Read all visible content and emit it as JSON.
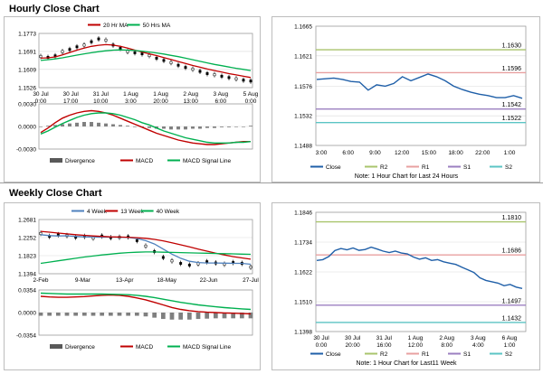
{
  "sections": {
    "hourly_title": "Hourly Close Chart",
    "weekly_title": "Weekly Close Chart"
  },
  "colors": {
    "price": "#000000",
    "ma_red": "#c00000",
    "ma_green": "#00b050",
    "ma_blue": "#4f81bd",
    "close_line": "#1f5fa8",
    "r2": "#a9c46c",
    "r1": "#e8a0a0",
    "s1": "#9b7fc0",
    "s2": "#5bc4c4",
    "grid": "#d9d9d9"
  },
  "chart_data": [
    {
      "id": "hourly_price",
      "type": "line",
      "legend": [
        "20 Hr MA",
        "50 Hrs MA"
      ],
      "y_ticks": [
        "1.1773",
        "1.1691",
        "1.1609",
        "1.1526"
      ],
      "ylim": [
        1.1526,
        1.1773
      ],
      "x_ticks": [
        [
          "30 Jul",
          "0:00"
        ],
        [
          "30 Jul",
          "17:00"
        ],
        [
          "31 Jul",
          "10:00"
        ],
        [
          "1 Aug",
          "3:00"
        ],
        [
          "1 Aug",
          "20:00"
        ],
        [
          "2 Aug",
          "13:00"
        ],
        [
          "3 Aug",
          "6:00"
        ],
        [
          "5 Aug",
          "0:00"
        ]
      ],
      "price": [
        1.1668,
        1.1664,
        1.1671,
        1.169,
        1.17,
        1.1712,
        1.172,
        1.1735,
        1.1748,
        1.1742,
        1.172,
        1.1705,
        1.169,
        1.1685,
        1.168,
        1.1672,
        1.166,
        1.165,
        1.164,
        1.1628,
        1.1618,
        1.161,
        1.16,
        1.159,
        1.1585,
        1.1578,
        1.1572,
        1.1566,
        1.156,
        1.1556
      ],
      "series": [
        {
          "name": "20 Hr MA",
          "values": [
            1.166,
            1.1662,
            1.1666,
            1.1675,
            1.1686,
            1.1697,
            1.1706,
            1.1714,
            1.1719,
            1.1722,
            1.172,
            1.1714,
            1.1706,
            1.1697,
            1.1688,
            1.168,
            1.1672,
            1.1663,
            1.1654,
            1.1645,
            1.1636,
            1.1627,
            1.1619,
            1.1611,
            1.1604,
            1.1597,
            1.159,
            1.1584,
            1.1578,
            1.1572
          ]
        },
        {
          "name": "50 Hrs MA",
          "values": [
            1.165,
            1.1653,
            1.1657,
            1.1662,
            1.1668,
            1.1674,
            1.168,
            1.1685,
            1.169,
            1.1694,
            1.1697,
            1.1698,
            1.1697,
            1.1695,
            1.1692,
            1.1688,
            1.1684,
            1.1679,
            1.1673,
            1.1667,
            1.166,
            1.1653,
            1.1646,
            1.1639,
            1.1632,
            1.1626,
            1.162,
            1.1614,
            1.1609,
            1.1604
          ]
        }
      ]
    },
    {
      "id": "hourly_macd",
      "type": "line",
      "y_ticks": [
        "0.0030",
        "0.0000",
        "-0.0030"
      ],
      "ylim": [
        -0.003,
        0.003
      ],
      "legend": [
        "Divergence",
        "MACD",
        "MACD Signal Line"
      ],
      "divergence": [
        0.0,
        0.0001,
        0.0002,
        0.0003,
        0.0004,
        0.0005,
        0.0006,
        0.0006,
        0.0005,
        0.0004,
        0.0003,
        0.0002,
        0.0001,
        0.0,
        -0.0001,
        -0.0002,
        -0.0003,
        -0.0003,
        -0.0004,
        -0.0004,
        -0.0004,
        -0.0003,
        -0.0003,
        -0.0002,
        -0.0002,
        -0.0001,
        -0.0001,
        0.0,
        0.0,
        0.0001
      ],
      "series": [
        {
          "name": "MACD",
          "values": [
            -0.0008,
            -0.0002,
            0.0005,
            0.0011,
            0.0015,
            0.0018,
            0.002,
            0.0021,
            0.002,
            0.0018,
            0.0015,
            0.0011,
            0.0007,
            0.0003,
            -0.0001,
            -0.0005,
            -0.0009,
            -0.0012,
            -0.0015,
            -0.0018,
            -0.002,
            -0.0022,
            -0.0023,
            -0.0024,
            -0.0024,
            -0.0023,
            -0.0022,
            -0.0021,
            -0.002,
            -0.002
          ]
        },
        {
          "name": "MACD Signal Line",
          "values": [
            -0.001,
            -0.0006,
            -0.0001,
            0.0004,
            0.0008,
            0.0012,
            0.0015,
            0.0017,
            0.0018,
            0.0018,
            0.0017,
            0.0015,
            0.0012,
            0.0009,
            0.0005,
            0.0002,
            -0.0002,
            -0.0006,
            -0.0009,
            -0.0012,
            -0.0015,
            -0.0017,
            -0.0019,
            -0.0021,
            -0.0022,
            -0.0022,
            -0.0022,
            -0.0021,
            -0.0021,
            -0.002
          ]
        }
      ]
    },
    {
      "id": "hourly_close",
      "type": "line",
      "title": "Note: 1 Hour Chart for Last 24 Hours",
      "y_ticks": [
        "1.1665",
        "1.1621",
        "1.1576",
        "1.1532",
        "1.1488"
      ],
      "ylim": [
        1.1488,
        1.1665
      ],
      "x_ticks": [
        "3:00",
        "6:00",
        "9:00",
        "12:00",
        "15:00",
        "18:00",
        "22:00",
        "1:00"
      ],
      "levels": [
        {
          "name": "R2",
          "value": 1.163,
          "label": "1.1630"
        },
        {
          "name": "R1",
          "value": 1.1596,
          "label": "1.1596"
        },
        {
          "name": "S1",
          "value": 1.1542,
          "label": "1.1542"
        },
        {
          "name": "S2",
          "value": 1.1522,
          "label": "1.1522"
        }
      ],
      "values": [
        1.1586,
        1.1587,
        1.1588,
        1.1586,
        1.1583,
        1.1582,
        1.157,
        1.1578,
        1.1576,
        1.158,
        1.159,
        1.1584,
        1.1589,
        1.1594,
        1.159,
        1.1584,
        1.1576,
        1.1571,
        1.1567,
        1.1564,
        1.1562,
        1.1559,
        1.1559,
        1.1562,
        1.1558
      ],
      "legend": [
        "Close",
        "R2",
        "R1",
        "S1",
        "S2"
      ]
    },
    {
      "id": "weekly_price",
      "type": "line",
      "legend": [
        "4 Week",
        "13 Week",
        "40 Week"
      ],
      "y_ticks": [
        "1.2681",
        "1.2252",
        "1.1823",
        "1.1394"
      ],
      "ylim": [
        1.1394,
        1.2681
      ],
      "x_ticks": [
        "2-Feb",
        "9-Mar",
        "13-Apr",
        "18-May",
        "22-Jun",
        "27-Jul"
      ],
      "price": [
        1.235,
        1.228,
        1.232,
        1.23,
        1.226,
        1.228,
        1.224,
        1.229,
        1.225,
        1.226,
        1.227,
        1.218,
        1.205,
        1.192,
        1.178,
        1.17,
        1.164,
        1.16,
        1.163,
        1.168,
        1.165,
        1.162,
        1.166,
        1.164,
        1.155
      ],
      "series": [
        {
          "name": "4 Week",
          "values": [
            1.232,
            1.23,
            1.229,
            1.2295,
            1.228,
            1.227,
            1.2265,
            1.226,
            1.2265,
            1.226,
            1.2255,
            1.223,
            1.218,
            1.21,
            1.198,
            1.186,
            1.176,
            1.169,
            1.166,
            1.165,
            1.165,
            1.1645,
            1.164,
            1.164,
            1.162
          ]
        },
        {
          "name": "13 Week",
          "values": [
            1.24,
            1.238,
            1.236,
            1.234,
            1.232,
            1.2305,
            1.229,
            1.228,
            1.227,
            1.2265,
            1.226,
            1.225,
            1.2235,
            1.221,
            1.2175,
            1.213,
            1.208,
            1.203,
            1.198,
            1.193,
            1.188,
            1.184,
            1.18,
            1.177,
            1.174
          ]
        },
        {
          "name": "40 Week",
          "values": [
            1.164,
            1.167,
            1.17,
            1.173,
            1.176,
            1.179,
            1.1815,
            1.184,
            1.186,
            1.188,
            1.1895,
            1.1905,
            1.191,
            1.191,
            1.1905,
            1.19,
            1.1895,
            1.189,
            1.1885,
            1.188,
            1.1875,
            1.187,
            1.1865,
            1.186,
            1.1855
          ]
        }
      ]
    },
    {
      "id": "weekly_macd",
      "type": "line",
      "y_ticks": [
        "0.0354",
        "0.0000",
        "-0.0354"
      ],
      "ylim": [
        -0.0354,
        0.0354
      ],
      "legend": [
        "Divergence",
        "MACD",
        "MACD Signal Line"
      ],
      "divergence": [
        -0.005,
        -0.005,
        -0.005,
        -0.005,
        -0.005,
        -0.005,
        -0.005,
        -0.005,
        -0.005,
        -0.005,
        -0.005,
        -0.005,
        -0.006,
        -0.008,
        -0.01,
        -0.011,
        -0.011,
        -0.011,
        -0.01,
        -0.0095,
        -0.009,
        -0.009,
        -0.009,
        -0.009,
        -0.009
      ],
      "series": [
        {
          "name": "MACD",
          "values": [
            0.0255,
            0.0245,
            0.024,
            0.024,
            0.0245,
            0.025,
            0.026,
            0.027,
            0.0275,
            0.027,
            0.0255,
            0.023,
            0.02,
            0.016,
            0.012,
            0.008,
            0.005,
            0.003,
            0.0015,
            0.0005,
            0.0,
            -0.0005,
            -0.001,
            -0.0015,
            -0.002
          ]
        },
        {
          "name": "MACD Signal Line",
          "values": [
            0.0305,
            0.03,
            0.0295,
            0.029,
            0.029,
            0.029,
            0.029,
            0.029,
            0.0288,
            0.0285,
            0.028,
            0.027,
            0.0255,
            0.0235,
            0.021,
            0.0185,
            0.016,
            0.014,
            0.012,
            0.0105,
            0.009,
            0.0078,
            0.0068,
            0.0058,
            0.005
          ]
        }
      ]
    },
    {
      "id": "weekly_close",
      "type": "line",
      "title": "Note: 1 Hour Chart for Last11 Week",
      "y_ticks": [
        "1.1846",
        "1.1734",
        "1.1622",
        "1.1510",
        "1.1398"
      ],
      "ylim": [
        1.1398,
        1.1846
      ],
      "x_ticks": [
        [
          "30 Jul",
          "0:00"
        ],
        [
          "30 Jul",
          "20:00"
        ],
        [
          "31 Jul",
          "16:00"
        ],
        [
          "1 Aug",
          "12:00"
        ],
        [
          "2 Aug",
          "8:00"
        ],
        [
          "3 Aug",
          "4:00"
        ],
        [
          "6 Aug",
          "1:00"
        ]
      ],
      "levels": [
        {
          "name": "R2",
          "value": 1.181,
          "label": "1.1810"
        },
        {
          "name": "R1",
          "value": 1.1686,
          "label": "1.1686"
        },
        {
          "name": "S1",
          "value": 1.1497,
          "label": "1.1497"
        },
        {
          "name": "S2",
          "value": 1.1432,
          "label": "1.1432"
        }
      ],
      "values": [
        1.1665,
        1.1668,
        1.168,
        1.1702,
        1.171,
        1.1705,
        1.1712,
        1.1703,
        1.1706,
        1.1715,
        1.1708,
        1.17,
        1.1695,
        1.17,
        1.1693,
        1.169,
        1.1678,
        1.167,
        1.1675,
        1.1665,
        1.1668,
        1.166,
        1.1655,
        1.165,
        1.164,
        1.163,
        1.162,
        1.16,
        1.159,
        1.1585,
        1.158,
        1.157,
        1.1575,
        1.1565,
        1.156
      ],
      "legend": [
        "Close",
        "R2",
        "R1",
        "S1",
        "S2"
      ]
    }
  ]
}
